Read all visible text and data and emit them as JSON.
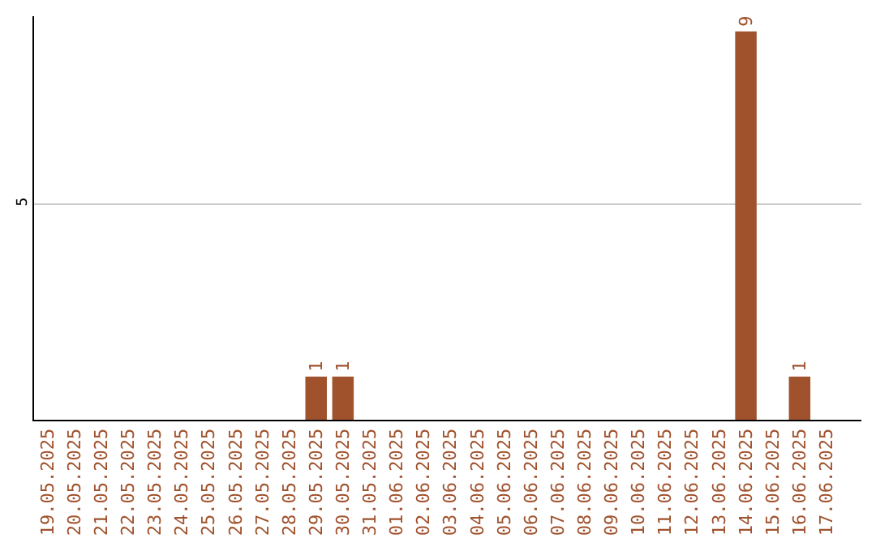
{
  "chart_data": {
    "type": "bar",
    "categories": [
      "19.05.2025",
      "20.05.2025",
      "21.05.2025",
      "22.05.2025",
      "23.05.2025",
      "24.05.2025",
      "25.05.2025",
      "26.05.2025",
      "27.05.2025",
      "28.05.2025",
      "29.05.2025",
      "30.05.2025",
      "31.05.2025",
      "01.06.2025",
      "02.06.2025",
      "03.06.2025",
      "04.06.2025",
      "05.06.2025",
      "06.06.2025",
      "07.06.2025",
      "08.06.2025",
      "09.06.2025",
      "10.06.2025",
      "11.06.2025",
      "12.06.2025",
      "13.06.2025",
      "14.06.2025",
      "15.06.2025",
      "16.06.2025",
      "17.06.2025"
    ],
    "values": [
      0,
      0,
      0,
      0,
      0,
      0,
      0,
      0,
      0,
      0,
      1,
      1,
      0,
      0,
      0,
      0,
      0,
      0,
      0,
      0,
      0,
      0,
      0,
      0,
      0,
      0,
      9,
      0,
      1,
      0
    ],
    "value_labels": [
      null,
      null,
      null,
      null,
      null,
      null,
      null,
      null,
      null,
      null,
      "1",
      "1",
      null,
      null,
      null,
      null,
      null,
      null,
      null,
      null,
      null,
      null,
      null,
      null,
      null,
      null,
      "9",
      null,
      "1",
      null
    ],
    "color": "#a0522d",
    "ylim": [
      0,
      9.35
    ],
    "yticks": [
      5
    ],
    "grid": "y",
    "legend": false
  }
}
